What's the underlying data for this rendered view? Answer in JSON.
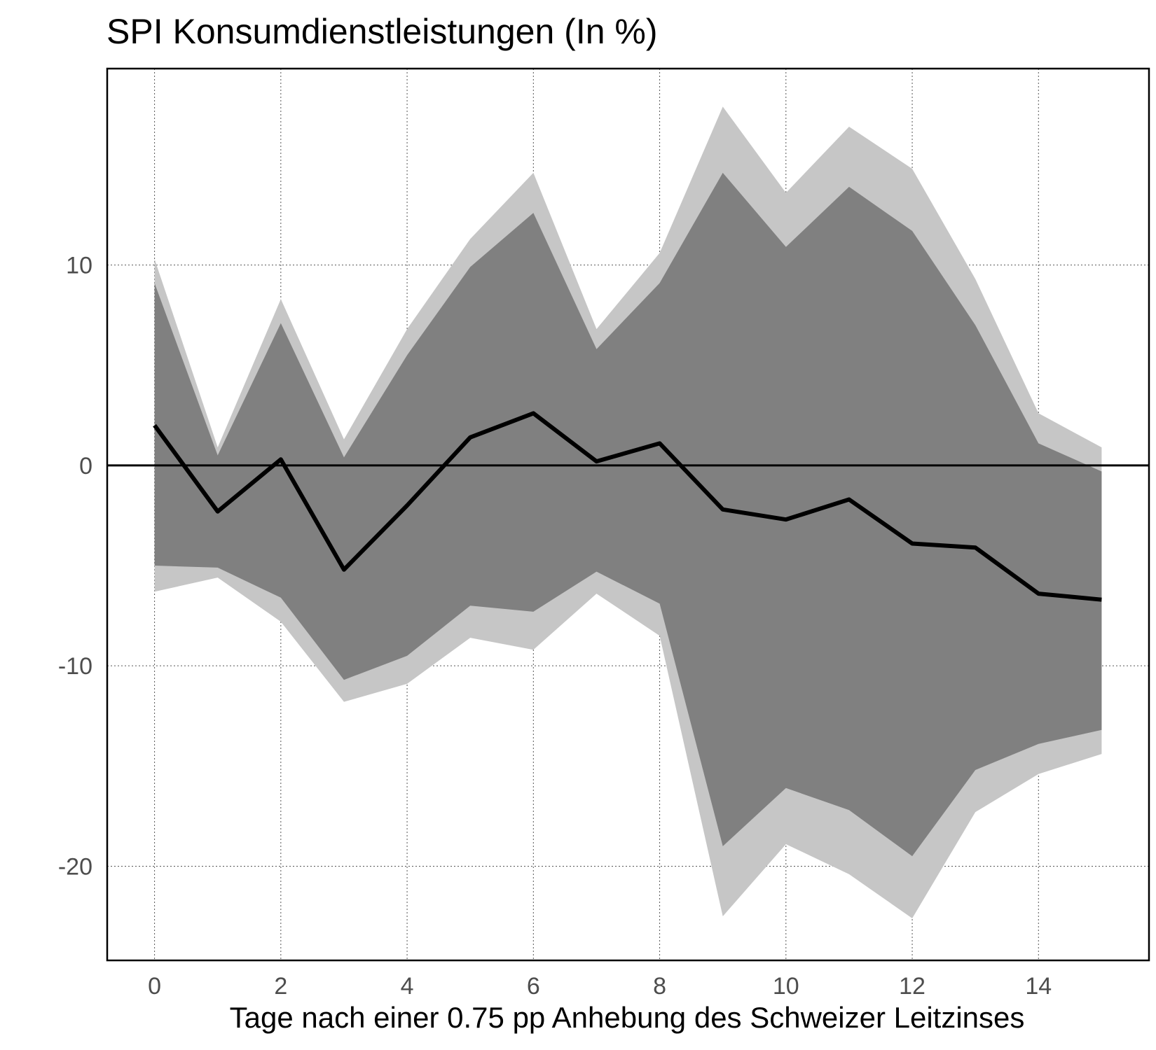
{
  "chart_data": {
    "type": "area",
    "title": "SPI Konsumdienstleistungen (In %)",
    "xlabel": "Tage nach einer 0.75 pp Anhebung des Schweizer Leitzinses",
    "ylabel": "",
    "xlim": [
      -0.75,
      15.75
    ],
    "ylim": [
      -24.7,
      19.8
    ],
    "x_ticks": [
      0,
      2,
      4,
      6,
      8,
      10,
      12,
      14
    ],
    "y_ticks": [
      -20,
      -10,
      0,
      10
    ],
    "grid": true,
    "zero_line": true,
    "x": [
      0,
      1,
      2,
      3,
      4,
      5,
      6,
      7,
      8,
      9,
      10,
      11,
      12,
      13,
      14,
      15
    ],
    "series": [
      {
        "role": "outer-band",
        "color": "#c6c6c6",
        "upper": [
          10.3,
          0.9,
          8.3,
          1.3,
          6.8,
          11.3,
          14.6,
          6.8,
          10.6,
          17.9,
          13.6,
          16.9,
          14.8,
          9.3,
          2.6,
          0.9
        ],
        "lower": [
          -6.3,
          -5.6,
          -7.8,
          -11.8,
          -10.9,
          -8.6,
          -9.2,
          -6.4,
          -8.5,
          -22.5,
          -18.9,
          -20.4,
          -22.6,
          -17.3,
          -15.4,
          -14.4
        ]
      },
      {
        "role": "inner-band",
        "color": "#808080",
        "upper": [
          9.1,
          0.5,
          7.1,
          0.4,
          5.5,
          9.9,
          12.6,
          5.8,
          9.1,
          14.6,
          10.9,
          13.9,
          11.7,
          7.0,
          1.1,
          -0.3
        ],
        "lower": [
          -5.0,
          -5.1,
          -6.6,
          -10.7,
          -9.5,
          -7.0,
          -7.3,
          -5.3,
          -6.9,
          -19.0,
          -16.1,
          -17.2,
          -19.5,
          -15.2,
          -13.9,
          -13.2
        ]
      },
      {
        "role": "estimate",
        "color": "#000000",
        "values": [
          2.0,
          -2.3,
          0.3,
          -5.2,
          -2.0,
          1.4,
          2.6,
          0.2,
          1.1,
          -2.2,
          -2.7,
          -1.7,
          -3.9,
          -4.1,
          -6.4,
          -6.7
        ]
      }
    ]
  }
}
